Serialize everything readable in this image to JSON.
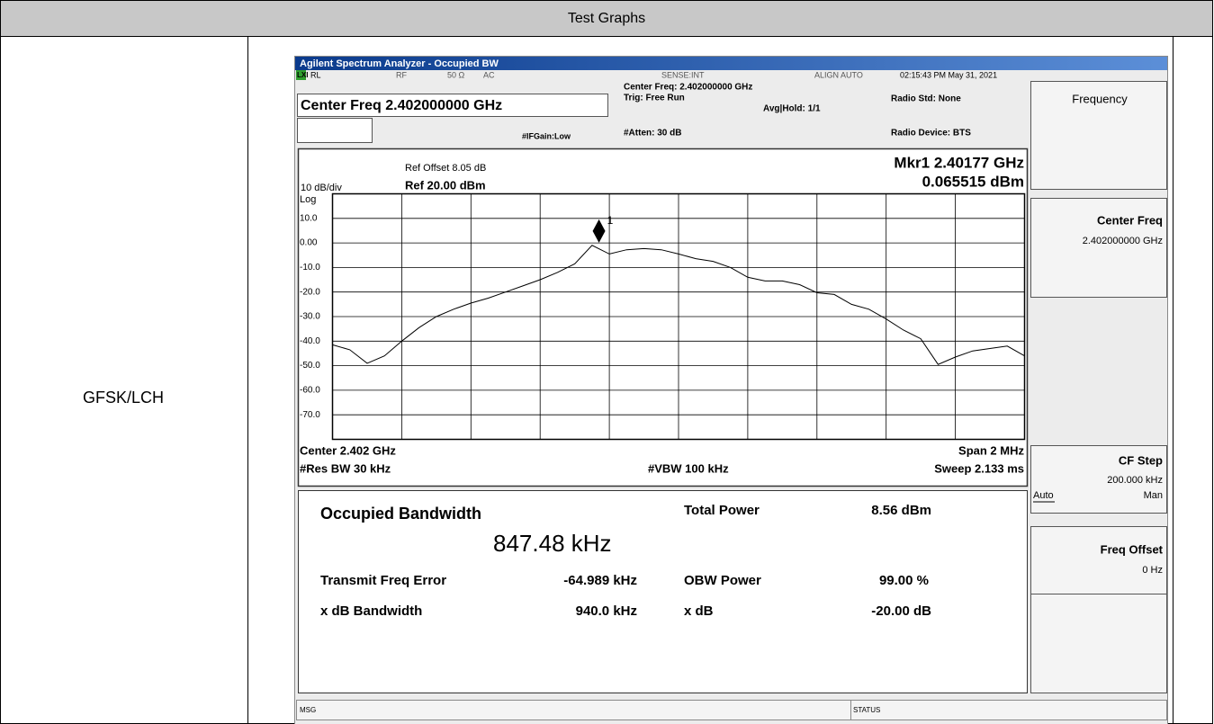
{
  "header": {
    "title": "Test Graphs"
  },
  "row": {
    "label": "GFSK/LCH"
  },
  "analyzer": {
    "window_title": "Agilent Spectrum Analyzer - Occupied BW",
    "status_bar": {
      "lxi": "LXI",
      "rl": "RL",
      "rf": "RF",
      "impedance": "50 Ω",
      "coupling": "AC",
      "sense": "SENSE:INT",
      "align": "ALIGN AUTO",
      "datetime": "02:15:43 PM May 31, 2021"
    },
    "settings": {
      "center_freq": "Center Freq 2.402000000 GHz",
      "if_gain": "#IFGain:Low",
      "center_freq_info": "Center Freq: 2.402000000 GHz",
      "trig": "Trig: Free Run",
      "avg_hold": "Avg|Hold: 1/1",
      "atten": "#Atten: 30 dB",
      "radio_std": "Radio Std: None",
      "radio_device": "Radio Device: BTS"
    },
    "graph": {
      "ref_offset": "Ref Offset 8.05 dB",
      "scale": "10 dB/div",
      "ref_level": "Ref 20.00 dBm",
      "scale_type": "Log",
      "marker_freq": "Mkr1  2.40177 GHz",
      "marker_level": "0.065515 dBm",
      "center": "Center  2.402 GHz",
      "span": "Span 2 MHz",
      "res_bw": "#Res BW  30 kHz",
      "vbw": "#VBW  100 kHz",
      "sweep": "Sweep  2.133 ms"
    },
    "trace": {
      "type": "line",
      "color": "#000000",
      "xlim": [
        2.401,
        2.403
      ],
      "ylim": [
        -80,
        20
      ],
      "yticks": [
        {
          "value": 10,
          "label": "10.0"
        },
        {
          "value": 0,
          "label": "0.00"
        },
        {
          "value": -10,
          "label": "-10.0"
        },
        {
          "value": -20,
          "label": "-20.0"
        },
        {
          "value": -30,
          "label": "-30.0"
        },
        {
          "value": -40,
          "label": "-40.0"
        },
        {
          "value": -50,
          "label": "-50.0"
        },
        {
          "value": -60,
          "label": "-60.0"
        },
        {
          "value": -70,
          "label": "-70.0"
        }
      ],
      "x": [
        2.401,
        2.40105,
        2.4011,
        2.40115,
        2.4012,
        2.40125,
        2.4013,
        2.40135,
        2.4014,
        2.40145,
        2.4015,
        2.40155,
        2.4016,
        2.40165,
        2.4017,
        2.40175,
        2.4018,
        2.40185,
        2.4019,
        2.40195,
        2.402,
        2.40205,
        2.4021,
        2.40215,
        2.4022,
        2.40225,
        2.4023,
        2.40235,
        2.4024,
        2.40245,
        2.4025,
        2.40255,
        2.4026,
        2.40265,
        2.4027,
        2.40275,
        2.4028,
        2.40285,
        2.4029,
        2.40295,
        2.403
      ],
      "values": [
        -41.5,
        -43.5,
        -49,
        -46,
        -40,
        -34.5,
        -30,
        -27,
        -24.5,
        -22.5,
        -20,
        -17.5,
        -15,
        -12,
        -8.5,
        -1,
        -4.5,
        -2.8,
        -2.3,
        -2.8,
        -4.5,
        -6.4,
        -7.5,
        -10,
        -14,
        -15.5,
        -15.5,
        -17,
        -20.3,
        -21,
        -25,
        -27,
        -31,
        -35.5,
        -39,
        -49.5,
        -46.5,
        -44,
        -43,
        -42,
        -46
      ],
      "marker": {
        "label": "1",
        "x": 2.40177,
        "value": 0.065515
      }
    },
    "results": {
      "obw_label": "Occupied Bandwidth",
      "obw_value": "847.48 kHz",
      "total_power_label": "Total Power",
      "total_power_value": "8.56 dBm",
      "freq_error_label": "Transmit Freq Error",
      "freq_error_value": "-64.989 kHz",
      "obw_power_label": "OBW Power",
      "obw_power_value": "99.00 %",
      "xdb_bw_label": "x dB Bandwidth",
      "xdb_bw_value": "940.0 kHz",
      "xdb_label": "x dB",
      "xdb_value": "-20.00 dB"
    },
    "softkeys": {
      "menu": "Frequency",
      "center_freq": "Center Freq",
      "center_freq_value": "2.402000000 GHz",
      "cf_step": "CF Step",
      "cf_step_value": "200.000 kHz",
      "auto": "Auto",
      "man": "Man",
      "freq_offset": "Freq Offset",
      "freq_offset_value": "0 Hz"
    },
    "msg": "MSG",
    "status": "STATUS"
  }
}
